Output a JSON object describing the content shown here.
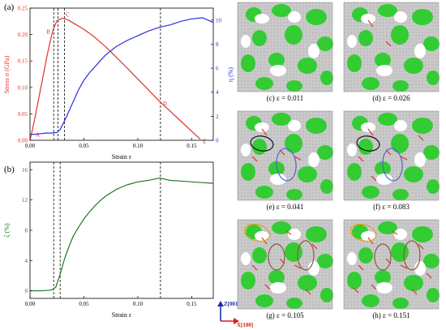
{
  "colors": {
    "stress": "#e0322b",
    "eta": "#2a2ee0",
    "zeta": "#1f7a1f",
    "phase": "#33cc33",
    "grain": "#c2c2c2",
    "defect": "#e04040",
    "ellipse_black": "#111111",
    "ellipse_blue": "#5a5ad8",
    "ellipse_orange": "#e3a21b",
    "ellipse_brown": "#8a5a3a",
    "axis_z": "#1a2ea8",
    "axis_x": "#d42020"
  },
  "chart_data": [
    {
      "type": "line",
      "panel_label": "(a)",
      "xlabel": "Strain ε",
      "xlim": [
        0,
        0.17
      ],
      "xticks": [
        "0.00",
        "0.05",
        "0.10",
        "0.15"
      ],
      "y_left": {
        "label": "Stress σ (GPa)",
        "lim": [
          0,
          0.25
        ],
        "ticks": [
          "0.00",
          "0.05",
          "0.10",
          "0.15",
          "0.20",
          "0.25"
        ]
      },
      "y_right": {
        "label": "η (%)",
        "lim": [
          0,
          11
        ],
        "ticks": [
          "0",
          "2",
          "4",
          "6",
          "8",
          "10"
        ]
      },
      "series": [
        {
          "axis": "left",
          "x": [
            0,
            0.004,
            0.008,
            0.012,
            0.016,
            0.02,
            0.022,
            0.025,
            0.03,
            0.035,
            0.04,
            0.05,
            0.06,
            0.07,
            0.08,
            0.09,
            0.1,
            0.11,
            0.12,
            0.13,
            0.14,
            0.15,
            0.158
          ],
          "values": [
            0,
            0.036,
            0.078,
            0.12,
            0.162,
            0.198,
            0.212,
            0.226,
            0.231,
            0.228,
            0.222,
            0.21,
            0.195,
            0.177,
            0.157,
            0.137,
            0.116,
            0.095,
            0.074,
            0.055,
            0.036,
            0.017,
            0.002
          ]
        },
        {
          "axis": "right",
          "x": [
            0,
            0.005,
            0.01,
            0.015,
            0.02,
            0.025,
            0.028,
            0.032,
            0.036,
            0.04,
            0.045,
            0.05,
            0.055,
            0.06,
            0.065,
            0.07,
            0.08,
            0.09,
            0.1,
            0.11,
            0.12,
            0.13,
            0.14,
            0.15,
            0.16,
            0.165,
            0.17
          ],
          "values": [
            0.5,
            0.5,
            0.55,
            0.6,
            0.6,
            0.65,
            0.9,
            1.6,
            2.4,
            3.2,
            4.2,
            5.0,
            5.6,
            6.1,
            6.6,
            7.1,
            7.8,
            8.3,
            8.7,
            9.1,
            9.4,
            9.6,
            9.9,
            10.1,
            10.2,
            10.0,
            9.8
          ]
        }
      ],
      "point_labels": [
        {
          "label": "A",
          "x": 0.003,
          "y": 0.004
        },
        {
          "label": "B",
          "x": 0.022,
          "y": 0.205
        },
        {
          "label": "C",
          "x": 0.031,
          "y": 0.229
        },
        {
          "label": "D",
          "x": 0.121,
          "y": 0.072
        },
        {
          "label": "E",
          "x": 0.158,
          "y": 0.004
        }
      ],
      "vlines": [
        0.022,
        0.026,
        0.032,
        0.121
      ]
    },
    {
      "type": "line",
      "panel_label": "(b)",
      "xlabel": "Strain ε",
      "xlim": [
        0,
        0.17
      ],
      "xticks": [
        "0.00",
        "0.05",
        "0.10",
        "0.15"
      ],
      "y_left": {
        "label": "ζ (%)",
        "lim": [
          -1,
          17
        ],
        "ticks": [
          "0",
          "4",
          "8",
          "12",
          "16"
        ]
      },
      "series": [
        {
          "axis": "left",
          "x": [
            0,
            0.01,
            0.02,
            0.024,
            0.028,
            0.032,
            0.036,
            0.04,
            0.045,
            0.05,
            0.055,
            0.06,
            0.065,
            0.07,
            0.08,
            0.09,
            0.1,
            0.11,
            0.12,
            0.13,
            0.14,
            0.15,
            0.16,
            0.17
          ],
          "values": [
            0,
            0,
            0.1,
            0.5,
            2.2,
            4.2,
            5.8,
            7.2,
            8.4,
            9.5,
            10.4,
            11.2,
            11.9,
            12.5,
            13.4,
            14.0,
            14.4,
            14.6,
            14.9,
            14.6,
            14.5,
            14.4,
            14.3,
            14.2
          ]
        }
      ],
      "vlines": [
        0.022,
        0.028,
        0.121
      ]
    }
  ],
  "axes_indicator": {
    "z": "Z[001]",
    "x": "X[100]"
  },
  "snapshots": [
    {
      "label": "(c) ε = 0.011",
      "level": 0,
      "ellipses": []
    },
    {
      "label": "(d) ε = 0.026",
      "level": 1,
      "ellipses": []
    },
    {
      "label": "(e) ε = 0.041",
      "level": 2,
      "ellipses": [
        "black",
        "blue"
      ]
    },
    {
      "label": "(f) ε = 0.083",
      "level": 3,
      "ellipses": [
        "black",
        "blue"
      ]
    },
    {
      "label": "(g) ε = 0.105",
      "level": 4,
      "ellipses": [
        "orange",
        "brown",
        "brown"
      ]
    },
    {
      "label": "(h) ε = 0.151",
      "level": 5,
      "ellipses": [
        "orange",
        "brown",
        "brown"
      ]
    }
  ]
}
